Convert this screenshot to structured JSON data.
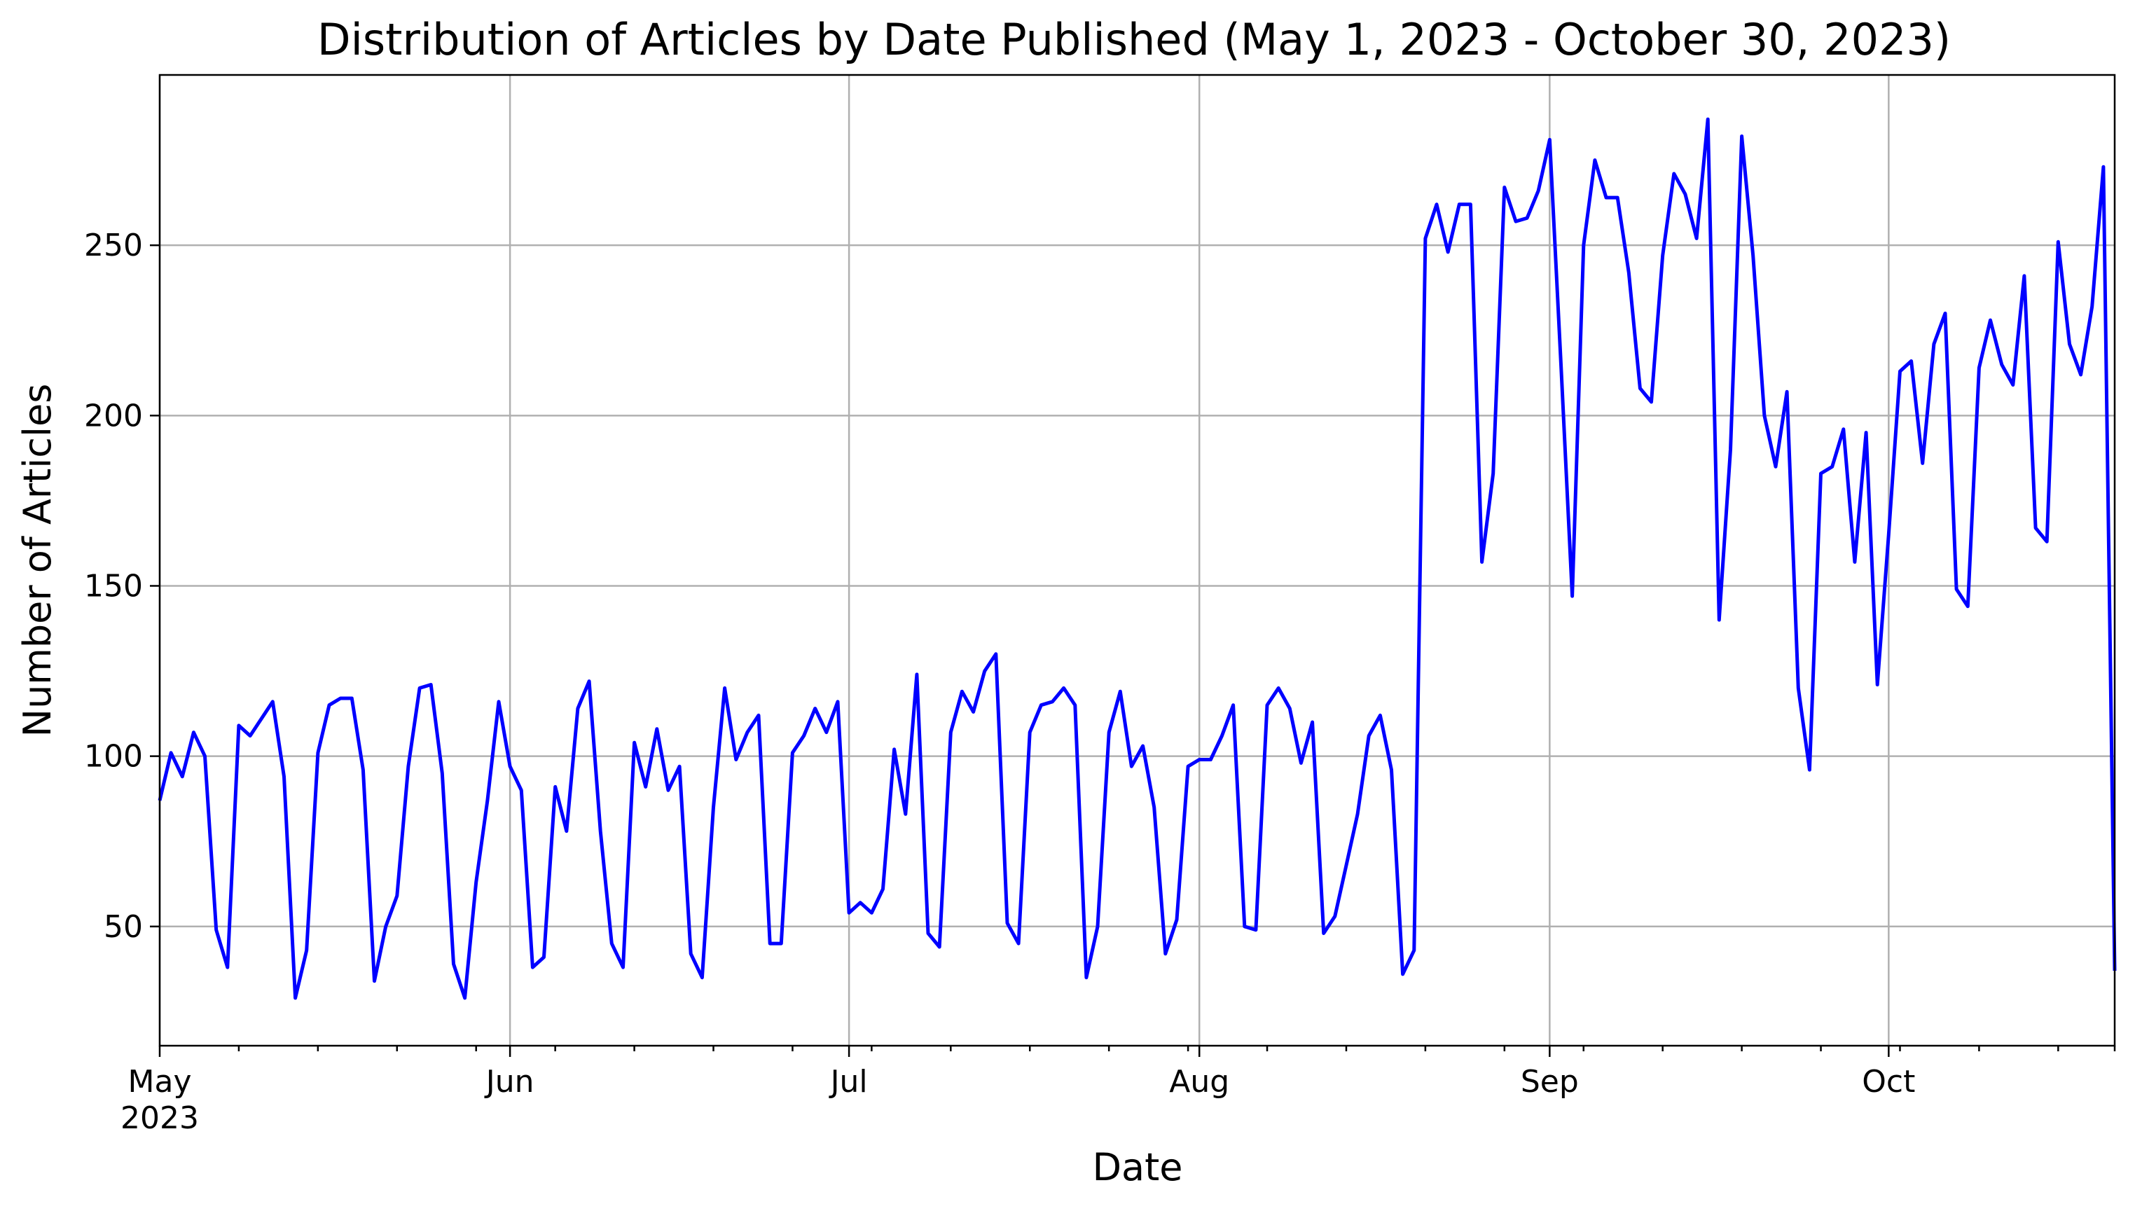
{
  "chart_data": {
    "type": "line",
    "title": "Distribution of Articles by Date Published (May 1, 2023 - October 30, 2023)",
    "xlabel": "Date",
    "ylabel": "Number of Articles",
    "xlim": [
      "2023-05-01",
      "2023-10-21"
    ],
    "ylim": [
      15,
      300
    ],
    "grid": true,
    "x_ticks": [
      {
        "date": "2023-05-01",
        "label": "May",
        "sublabel": "2023"
      },
      {
        "date": "2023-06-01",
        "label": "Jun",
        "sublabel": ""
      },
      {
        "date": "2023-07-01",
        "label": "Jul",
        "sublabel": ""
      },
      {
        "date": "2023-08-01",
        "label": "Aug",
        "sublabel": ""
      },
      {
        "date": "2023-09-01",
        "label": "Sep",
        "sublabel": ""
      },
      {
        "date": "2023-10-01",
        "label": "Oct",
        "sublabel": ""
      }
    ],
    "x_minor_ticks": [
      "2023-05-08",
      "2023-05-15",
      "2023-05-22",
      "2023-05-29",
      "2023-06-05",
      "2023-06-12",
      "2023-06-19",
      "2023-06-26",
      "2023-07-03",
      "2023-07-10",
      "2023-07-17",
      "2023-07-24",
      "2023-07-31",
      "2023-08-07",
      "2023-08-14",
      "2023-08-21",
      "2023-08-28",
      "2023-09-04",
      "2023-09-11",
      "2023-09-18",
      "2023-09-25",
      "2023-10-02",
      "2023-10-09",
      "2023-10-16"
    ],
    "y_ticks": [
      50,
      100,
      150,
      200,
      250
    ],
    "series": [
      {
        "color": "#0000ff",
        "start_date": "2023-05-01",
        "values": [
          87,
          101,
          94,
          107,
          100,
          49,
          38,
          109,
          106,
          111,
          116,
          94,
          29,
          43,
          101,
          115,
          117,
          117,
          96,
          34,
          50,
          59,
          97,
          120,
          121,
          95,
          39,
          29,
          63,
          87,
          116,
          97,
          90,
          38,
          41,
          91,
          78,
          114,
          122,
          78,
          45,
          38,
          104,
          91,
          108,
          90,
          97,
          42,
          35,
          85,
          120,
          99,
          107,
          112,
          45,
          45,
          101,
          106,
          114,
          107,
          116,
          54,
          57,
          54,
          61,
          102,
          83,
          124,
          48,
          44,
          107,
          119,
          113,
          125,
          130,
          51,
          45,
          107,
          115,
          116,
          120,
          115,
          35,
          50,
          107,
          119,
          97,
          103,
          85,
          42,
          52,
          97,
          99,
          99,
          106,
          115,
          50,
          49,
          115,
          120,
          114,
          98,
          110,
          48,
          53,
          68,
          83,
          106,
          112,
          96,
          36,
          43,
          252,
          262,
          248,
          262,
          262,
          157,
          183,
          267,
          257,
          258,
          266,
          281,
          215,
          147,
          250,
          275,
          264,
          264,
          242,
          208,
          204,
          247,
          271,
          265,
          252,
          287,
          140,
          190,
          282,
          247,
          200,
          185,
          207,
          120,
          96,
          183,
          185,
          196,
          157,
          195,
          121,
          165,
          213,
          216,
          186,
          221,
          230,
          149,
          144,
          214,
          228,
          215,
          209,
          241,
          167,
          163,
          251,
          221,
          212,
          232,
          273,
          37
        ]
      }
    ]
  }
}
